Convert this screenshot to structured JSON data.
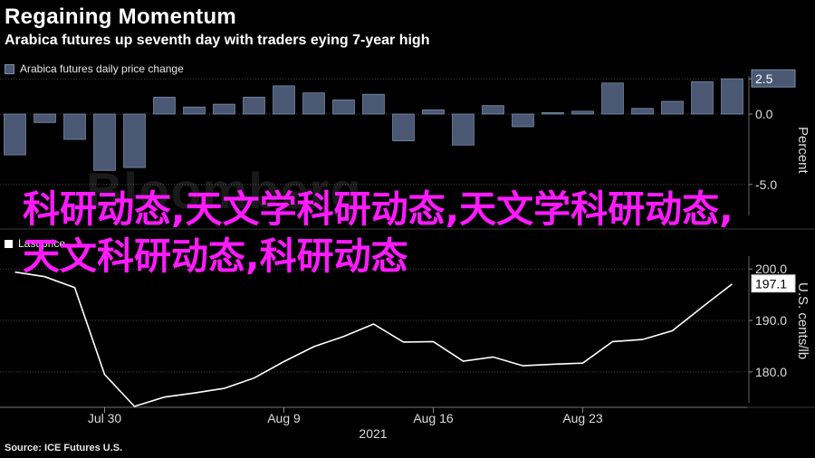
{
  "header": {
    "title": "Regaining Momentum",
    "subtitle": "Arabica futures up seventh day with traders eying 7-year high"
  },
  "watermark": "Bloomberg",
  "overlay_text": "科研动态,天文学科研动态,天文学科研动态,天文科研动态,科研动态",
  "source": "Source: ICE Futures U.S.",
  "colors": {
    "bar": "#4a5873",
    "bar_edge": "#7f8fae",
    "line": "#ffffff",
    "overlay": "#ff1aff",
    "grid": "#444"
  },
  "chart_data": [
    {
      "type": "bar",
      "legend": "Arabica futures daily price change",
      "ylabel": "Percent",
      "ylim": [
        -7.2,
        2.7
      ],
      "yticks": [
        2.5,
        0.0,
        -5.0
      ],
      "last_value_label": "2.5",
      "values": [
        -2.9,
        -0.6,
        -1.8,
        -4.0,
        -3.8,
        1.2,
        0.5,
        0.7,
        1.2,
        2.0,
        1.5,
        1.0,
        1.4,
        -1.9,
        0.3,
        -2.2,
        0.6,
        -0.9,
        0.1,
        0.2,
        2.2,
        0.4,
        0.9,
        2.3,
        2.5
      ]
    },
    {
      "type": "line",
      "legend": "Last price",
      "ylabel": "U.S. cents/lb",
      "ylim": [
        174,
        202.5
      ],
      "yticks": [
        200.0,
        190.0,
        180.0
      ],
      "last_value_label": "197.1",
      "values": [
        199.4,
        198.5,
        196.4,
        179.5,
        173.3,
        175.1,
        175.9,
        176.8,
        178.8,
        182.0,
        184.9,
        186.9,
        189.3,
        185.8,
        185.9,
        182.1,
        182.9,
        181.2,
        181.5,
        181.7,
        185.9,
        186.3,
        188.0,
        192.6,
        197.1
      ]
    }
  ],
  "x_axis": {
    "ticks": [
      {
        "label": "Jul 30",
        "index": 3
      },
      {
        "label": "Aug 9",
        "index": 9
      },
      {
        "label": "Aug 16",
        "index": 14
      },
      {
        "label": "Aug 23",
        "index": 19
      }
    ],
    "year": "2021"
  }
}
